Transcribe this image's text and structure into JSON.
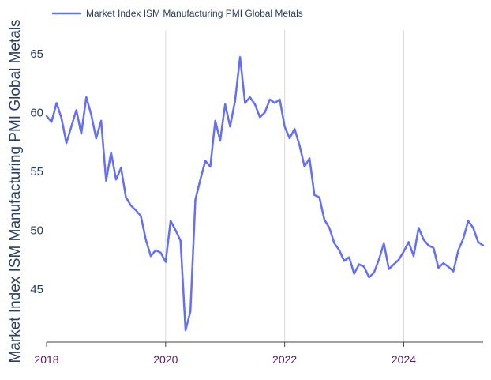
{
  "chart_data": {
    "type": "line",
    "title": "",
    "xlabel": "",
    "ylabel": "Market Index ISM Manufacturing PMI Global Metals",
    "ylim": [
      40.5,
      67
    ],
    "xlim": [
      "2018-01",
      "2025-05"
    ],
    "y_ticks": [
      "45",
      "50",
      "55",
      "60",
      "65"
    ],
    "x_ticks": [
      "2018",
      "2020",
      "2022",
      "2024"
    ],
    "grid": "vertical",
    "legend_position": "top-left",
    "colors": {
      "series": "#636efa",
      "grid": "#d9d9d9",
      "axis": "#444444"
    },
    "series": [
      {
        "name": "Market Index ISM Manufacturing PMI Global Metals",
        "x": [
          "2018-01",
          "2018-02",
          "2018-03",
          "2018-04",
          "2018-05",
          "2018-06",
          "2018-07",
          "2018-08",
          "2018-09",
          "2018-10",
          "2018-11",
          "2018-12",
          "2019-01",
          "2019-02",
          "2019-03",
          "2019-04",
          "2019-05",
          "2019-06",
          "2019-07",
          "2019-08",
          "2019-09",
          "2019-10",
          "2019-11",
          "2019-12",
          "2020-01",
          "2020-02",
          "2020-03",
          "2020-04",
          "2020-05",
          "2020-06",
          "2020-07",
          "2020-08",
          "2020-09",
          "2020-10",
          "2020-11",
          "2020-12",
          "2021-01",
          "2021-02",
          "2021-03",
          "2021-04",
          "2021-05",
          "2021-06",
          "2021-07",
          "2021-08",
          "2021-09",
          "2021-10",
          "2021-11",
          "2021-12",
          "2022-01",
          "2022-02",
          "2022-03",
          "2022-04",
          "2022-05",
          "2022-06",
          "2022-07",
          "2022-08",
          "2022-09",
          "2022-10",
          "2022-11",
          "2022-12",
          "2023-01",
          "2023-02",
          "2023-03",
          "2023-04",
          "2023-05",
          "2023-06",
          "2023-07",
          "2023-08",
          "2023-09",
          "2023-10",
          "2023-11",
          "2023-12",
          "2024-01",
          "2024-02",
          "2024-03",
          "2024-04",
          "2024-05",
          "2024-06",
          "2024-07",
          "2024-08",
          "2024-09",
          "2024-10",
          "2024-11",
          "2024-12",
          "2025-01",
          "2025-02",
          "2025-03",
          "2025-04",
          "2025-05"
        ],
        "y": [
          59.7,
          59.2,
          60.8,
          59.5,
          57.4,
          58.8,
          60.2,
          58.2,
          61.3,
          59.8,
          57.8,
          59.3,
          54.2,
          56.6,
          54.3,
          55.3,
          52.8,
          52.1,
          51.7,
          51.2,
          49.2,
          47.8,
          48.3,
          48.1,
          47.3,
          50.8,
          50.0,
          49.1,
          41.5,
          43.1,
          52.6,
          54.3,
          55.9,
          55.4,
          59.3,
          57.6,
          60.7,
          58.8,
          61.0,
          64.7,
          60.8,
          61.3,
          60.7,
          59.6,
          60.0,
          61.1,
          60.8,
          61.1,
          58.8,
          57.8,
          58.6,
          57.2,
          55.4,
          56.1,
          53.0,
          52.8,
          50.9,
          50.2,
          48.9,
          48.3,
          47.4,
          47.7,
          46.3,
          47.1,
          46.9,
          46.0,
          46.4,
          47.5,
          48.9,
          46.7,
          47.1,
          47.5,
          48.2,
          49.0,
          47.8,
          50.2,
          49.2,
          48.7,
          48.5,
          46.8,
          47.2,
          46.9,
          46.5,
          48.3,
          49.3,
          50.8,
          50.2,
          49.0,
          48.7
        ]
      }
    ]
  }
}
